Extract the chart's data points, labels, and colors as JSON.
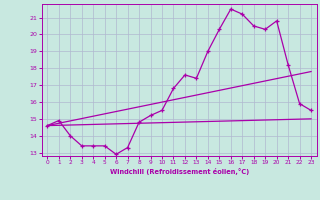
{
  "xlabel": "Windchill (Refroidissement éolien,°C)",
  "xlim": [
    -0.5,
    23.5
  ],
  "ylim": [
    12.8,
    21.8
  ],
  "yticks": [
    13,
    14,
    15,
    16,
    17,
    18,
    19,
    20,
    21
  ],
  "xticks": [
    0,
    1,
    2,
    3,
    4,
    5,
    6,
    7,
    8,
    9,
    10,
    11,
    12,
    13,
    14,
    15,
    16,
    17,
    18,
    19,
    20,
    21,
    22,
    23
  ],
  "bg_color": "#c8e8e0",
  "grid_color": "#b0b8d0",
  "line_color": "#aa00aa",
  "line1_x": [
    0,
    1,
    2,
    3,
    4,
    5,
    6,
    7,
    8,
    9,
    10,
    11,
    12,
    13,
    14,
    15,
    16,
    17,
    18,
    19,
    20,
    21,
    22,
    23
  ],
  "line1_y": [
    14.6,
    14.9,
    14.0,
    13.4,
    13.4,
    13.4,
    12.9,
    13.3,
    14.8,
    15.2,
    15.5,
    16.8,
    17.6,
    17.4,
    19.0,
    20.3,
    21.5,
    21.2,
    20.5,
    20.3,
    20.8,
    18.2,
    15.9,
    15.5
  ],
  "line2_x": [
    0,
    23
  ],
  "line2_y": [
    14.6,
    17.8
  ],
  "line3_x": [
    0,
    23
  ],
  "line3_y": [
    14.6,
    15.0
  ]
}
